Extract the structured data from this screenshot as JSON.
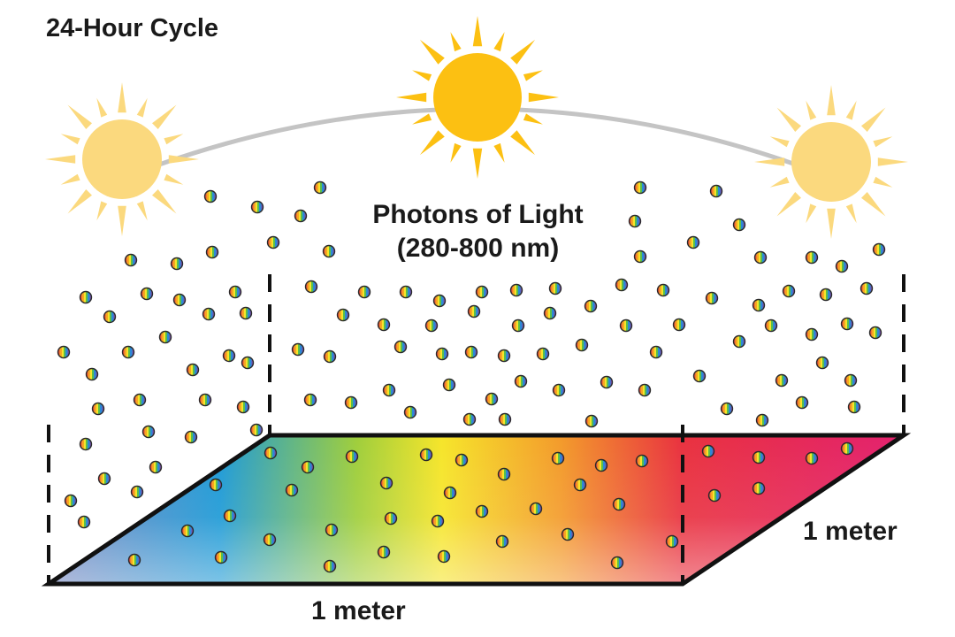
{
  "title": "24-Hour Cycle",
  "photons": {
    "title": "Photons of Light",
    "range": "(280-800 nm)"
  },
  "area": {
    "width_label": "1 meter",
    "depth_label": "1 meter",
    "spectrum_colors": [
      "#7a86c0",
      "#1e9ad6",
      "#9fce3c",
      "#f6e52a",
      "#f39a2b",
      "#e9323f",
      "#e3216f"
    ]
  },
  "suns": [
    {
      "name": "sun-left",
      "color": "#fbd97e"
    },
    {
      "name": "sun-center",
      "color": "#fcc012"
    },
    {
      "name": "sun-right",
      "color": "#fbd97e"
    }
  ],
  "arc_color": "#c4c4c4",
  "photon_colors": [
    "#e94b3c",
    "#f6a623",
    "#f6e52a",
    "#5bbf4a",
    "#2b8ad6",
    "#7a4fb0"
  ]
}
